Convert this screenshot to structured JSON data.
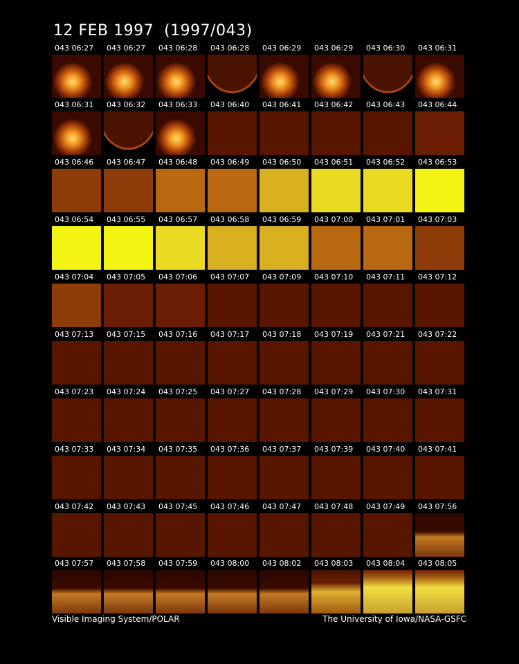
{
  "title": "12 FEB 1997  (1997/043)",
  "rows": [
    [
      "043 06:27",
      "043 06:27",
      "043 06:28",
      "043 06:28",
      "043 06:29",
      "043 06:29",
      "043 06:30",
      "043 06:31"
    ],
    [
      "043 06:31",
      "043 06:32",
      "043 06:33",
      "043 06:40",
      "043 06:41",
      "043 06:42",
      "043 06:43",
      "043 06:44"
    ],
    [
      "043 06:46",
      "043 06:47",
      "043 06:48",
      "043 06:49",
      "043 06:50",
      "043 06:51",
      "043 06:52",
      "043 06:53"
    ],
    [
      "043 06:54",
      "043 06:55",
      "043 06:57",
      "043 06:58",
      "043 06:59",
      "043 07:00",
      "043 07:01",
      "043 07:03"
    ],
    [
      "043 07:04",
      "043 07:05",
      "043 07:06",
      "043 07:07",
      "043 07:09",
      "043 07:10",
      "043 07:11",
      "043 07:12"
    ],
    [
      "043 07:13",
      "043 07:15",
      "043 07:16",
      "043 07:17",
      "043 07:18",
      "043 07:19",
      "043 07:21",
      "043 07:22"
    ],
    [
      "043 07:23",
      "043 07:24",
      "043 07:25",
      "043 07:27",
      "043 07:28",
      "043 07:29",
      "043 07:30",
      "043 07:31"
    ],
    [
      "043 07:33",
      "043 07:34",
      "043 07:35",
      "043 07:36",
      "043 07:37",
      "043 07:39",
      "043 07:40",
      "043 07:41"
    ],
    [
      "043 07:42",
      "043 07:43",
      "043 07:45",
      "043 07:46",
      "043 07:47",
      "043 07:48",
      "043 07:49",
      "043 07:56"
    ],
    [
      "043 07:57",
      "043 07:58",
      "043 07:59",
      "043 08:00",
      "043 08:02",
      "043 08:03",
      "043 08:04",
      "043 08:05"
    ]
  ],
  "footer": {
    "left": "Visible Imaging System/POLAR",
    "right": "The University of Iowa/NASA-GSFC"
  }
}
